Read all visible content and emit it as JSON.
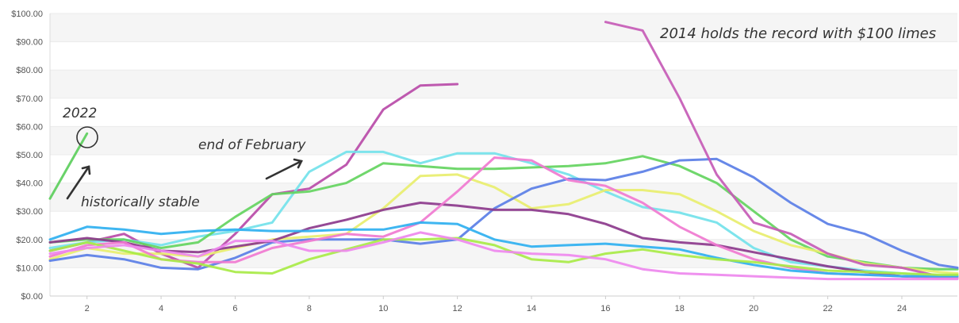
{
  "chart_data": {
    "type": "line",
    "title": "",
    "xlabel": "",
    "ylabel": "",
    "xlim": [
      1,
      25.5
    ],
    "ylim": [
      0,
      100
    ],
    "y_ticks": [
      0,
      10,
      20,
      30,
      40,
      50,
      60,
      70,
      80,
      90,
      100
    ],
    "y_tick_labels": [
      "$0.00",
      "$10.00",
      "$20.00",
      "$30.00",
      "$40.00",
      "$50.00",
      "$60.00",
      "$70.00",
      "$80.00",
      "$90.00",
      "$100.00"
    ],
    "x_ticks": [
      2,
      4,
      6,
      8,
      10,
      12,
      14,
      16,
      18,
      20,
      22,
      24
    ],
    "x_tick_labels": [
      "2",
      "4",
      "6",
      "8",
      "10",
      "12",
      "14",
      "16",
      "18",
      "20",
      "22",
      "24"
    ],
    "grid": "horizontal bands",
    "legend": "none",
    "series": [
      {
        "color": "#5cce5c",
        "x": [
          1,
          2
        ],
        "y": [
          34.5,
          57.5
        ]
      },
      {
        "color": "#b84ba8",
        "x": [
          1,
          2,
          3,
          4,
          5,
          6,
          7,
          8,
          9,
          10,
          11,
          12
        ],
        "y": [
          16,
          19,
          22,
          15,
          10,
          22,
          36,
          38,
          46.5,
          66,
          74.5,
          75
        ]
      },
      {
        "color": "#73e2ea",
        "x": [
          1,
          2,
          3,
          4,
          5,
          6,
          7,
          8,
          9,
          10,
          11,
          12,
          13,
          14,
          15,
          16,
          17,
          18,
          19,
          20,
          21,
          22,
          23,
          24,
          25,
          25.5
        ],
        "y": [
          17,
          19,
          20,
          18,
          21,
          23,
          26,
          44,
          51,
          51,
          47,
          50.5,
          50.5,
          47,
          43,
          37,
          31.5,
          29.5,
          26,
          17,
          12,
          10.5,
          9,
          8,
          7,
          7
        ]
      },
      {
        "color": "#64d460",
        "x": [
          1,
          2,
          3,
          4,
          5,
          6,
          7,
          8,
          9,
          10,
          11,
          12,
          13,
          14,
          15,
          16,
          17,
          18,
          19,
          20,
          21,
          22,
          23,
          24,
          25,
          25.5
        ],
        "y": [
          19,
          20,
          20,
          17,
          19,
          28,
          36,
          37,
          40,
          47,
          46,
          45,
          45,
          45.5,
          46,
          47,
          49.5,
          46,
          40,
          30,
          20,
          14,
          12,
          10,
          9.5,
          9.5
        ]
      },
      {
        "color": "#e8ee6e",
        "x": [
          1,
          2,
          3,
          4,
          5,
          6,
          7,
          8,
          9,
          10,
          11,
          12,
          13,
          14,
          15,
          16,
          17,
          18,
          19,
          20,
          21,
          22,
          23,
          24,
          25,
          25.5
        ],
        "y": [
          13,
          17,
          15,
          15,
          14,
          17,
          20,
          21,
          22,
          31,
          42.5,
          43,
          38.5,
          31,
          32.5,
          37.5,
          37.5,
          36,
          30,
          23,
          18,
          15,
          11.5,
          10,
          8.5,
          8
        ]
      },
      {
        "color": "#5a7ee6",
        "x": [
          1,
          2,
          3,
          4,
          5,
          6,
          7,
          8,
          9,
          10,
          11,
          12,
          13,
          14,
          15,
          16,
          17,
          18,
          19,
          20,
          21,
          22,
          23,
          24,
          25,
          25.5
        ],
        "y": [
          12.5,
          14.5,
          13,
          10,
          9.5,
          13.5,
          19,
          20,
          20,
          20,
          18.5,
          20,
          31,
          38,
          41.5,
          41,
          44,
          48,
          48.5,
          42,
          33,
          25.5,
          22,
          16,
          11,
          10
        ]
      },
      {
        "color": "#8c3a8c",
        "x": [
          1,
          2,
          3,
          4,
          5,
          6,
          7,
          8,
          9,
          10,
          11,
          12,
          13,
          14,
          15,
          16,
          17,
          18,
          19,
          20,
          21,
          22,
          23,
          24,
          25,
          25.5
        ],
        "y": [
          19,
          20.5,
          19,
          16,
          15.5,
          17.5,
          19.5,
          24,
          27,
          30.5,
          33,
          32,
          30.5,
          30.5,
          29,
          25.5,
          20.5,
          19,
          18,
          15.5,
          13,
          10.5,
          8.5,
          7,
          6.5,
          6.5
        ]
      },
      {
        "color": "#c65bb6",
        "x": [
          16,
          17,
          18,
          19,
          20,
          21,
          22,
          23,
          24,
          25,
          25.5
        ],
        "y": [
          97,
          94,
          70,
          43,
          26,
          22,
          15,
          11,
          10,
          7,
          6.5
        ]
      },
      {
        "color": "#f07ad0",
        "x": [
          1,
          2,
          3,
          4,
          5,
          6,
          7,
          8,
          9,
          10,
          11,
          12,
          13,
          14,
          15,
          16,
          17,
          18,
          19,
          20,
          21,
          22,
          23,
          24,
          25,
          25.5
        ],
        "y": [
          14,
          18,
          19,
          13,
          12,
          12,
          17,
          19.5,
          22,
          21,
          26,
          37,
          49,
          48,
          41,
          39,
          33,
          24.5,
          18,
          13,
          10,
          8,
          7.5,
          7,
          6.5,
          6.5
        ]
      },
      {
        "color": "#2fb0f0",
        "x": [
          1,
          2,
          3,
          4,
          5,
          6,
          7,
          8,
          9,
          10,
          11,
          12,
          13,
          14,
          15,
          16,
          17,
          18,
          19,
          20,
          21,
          22,
          23,
          24,
          25,
          25.5
        ],
        "y": [
          20,
          24.5,
          23.5,
          22,
          23,
          23.5,
          23,
          23,
          23.5,
          23.5,
          26,
          25.5,
          20,
          17.5,
          18,
          18.5,
          17.5,
          16.5,
          13.5,
          11,
          9,
          8,
          7.5,
          7,
          7,
          7
        ]
      },
      {
        "color": "#a8ea46",
        "x": [
          1,
          2,
          3,
          4,
          5,
          6,
          7,
          8,
          9,
          10,
          11,
          12,
          13,
          14,
          15,
          16,
          17,
          18,
          19,
          20,
          21,
          22,
          23,
          24,
          25,
          25.5
        ],
        "y": [
          16,
          19,
          16,
          13,
          11.5,
          8.5,
          8,
          13,
          16.5,
          20,
          20,
          20.5,
          18,
          13,
          12,
          15,
          16.5,
          14.5,
          13,
          12,
          10.5,
          9,
          8.5,
          8,
          7.5,
          7.5
        ]
      },
      {
        "color": "#ee88ee",
        "x": [
          1,
          2,
          3,
          4,
          5,
          6,
          7,
          8,
          9,
          10,
          11,
          12,
          13,
          14,
          15,
          16,
          17,
          18,
          19,
          20,
          21,
          22,
          23,
          24,
          25,
          25.5
        ],
        "y": [
          15,
          17,
          18,
          16,
          14,
          19.5,
          19.5,
          16,
          16,
          19,
          22.5,
          20,
          16,
          15,
          14.5,
          13,
          9.5,
          8,
          7.5,
          7,
          6.5,
          6,
          6,
          6,
          6,
          6
        ]
      }
    ],
    "annotations": [
      {
        "text": "2022",
        "color": "#333333"
      },
      {
        "text": "historically stable",
        "color": "#333333"
      },
      {
        "text": "end of February",
        "color": "#333333"
      },
      {
        "text": "2014 holds the record with $100 limes",
        "color": "#333333"
      }
    ]
  }
}
